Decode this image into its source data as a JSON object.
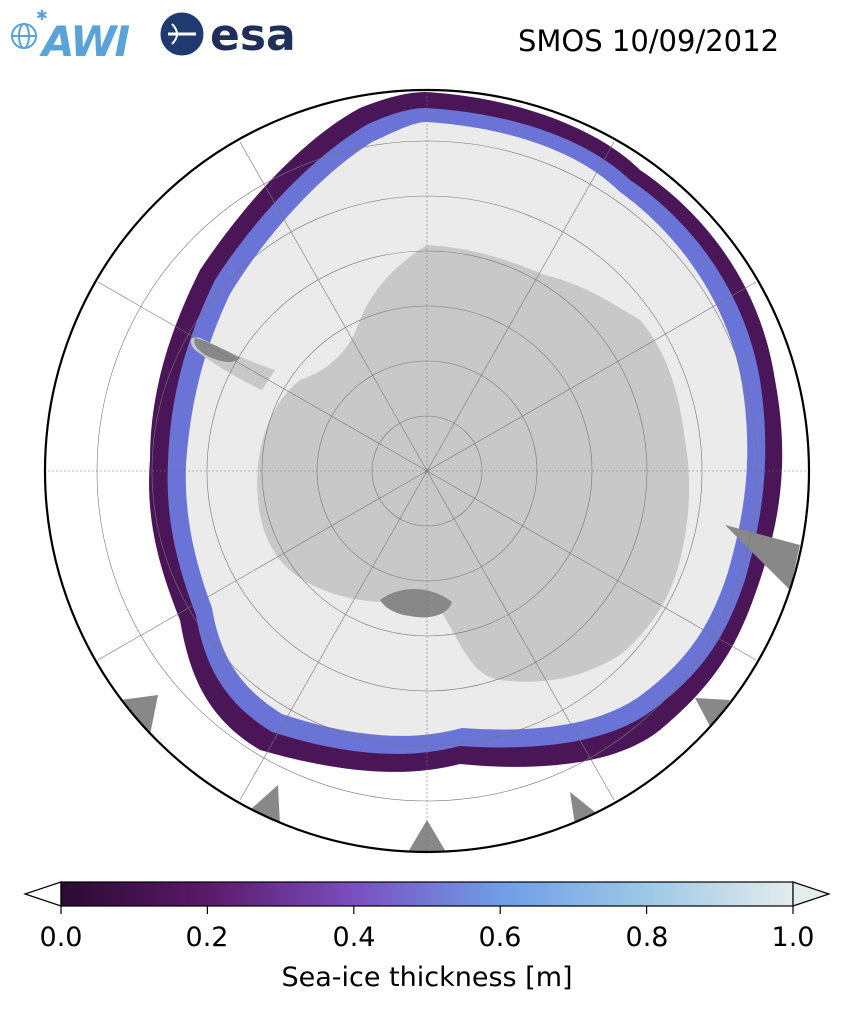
{
  "header": {
    "logo_awi_text": "AWI",
    "logo_esa_text": "esa",
    "title": "SMOS 10/09/2012"
  },
  "map": {
    "projection": "south-polar-stereographic",
    "graticule": true,
    "land_color": "#c8c8c8",
    "ice_shelf_color": "#888888",
    "thick_ice_color": "#ebebeb",
    "ocean_color": "#ffffff"
  },
  "colorbar": {
    "label": "Sea-ice thickness [m]",
    "min": 0.0,
    "max": 1.0,
    "ticks": [
      "0.0",
      "0.2",
      "0.4",
      "0.6",
      "0.8",
      "1.0"
    ],
    "tick_values": [
      0.0,
      0.2,
      0.4,
      0.6,
      0.8,
      1.0
    ],
    "colormap_stops": [
      "#2a0b32",
      "#5a1a68",
      "#7a4fbf",
      "#6f9de6",
      "#9cc8e6",
      "#e4ecec"
    ],
    "extend": "both"
  }
}
